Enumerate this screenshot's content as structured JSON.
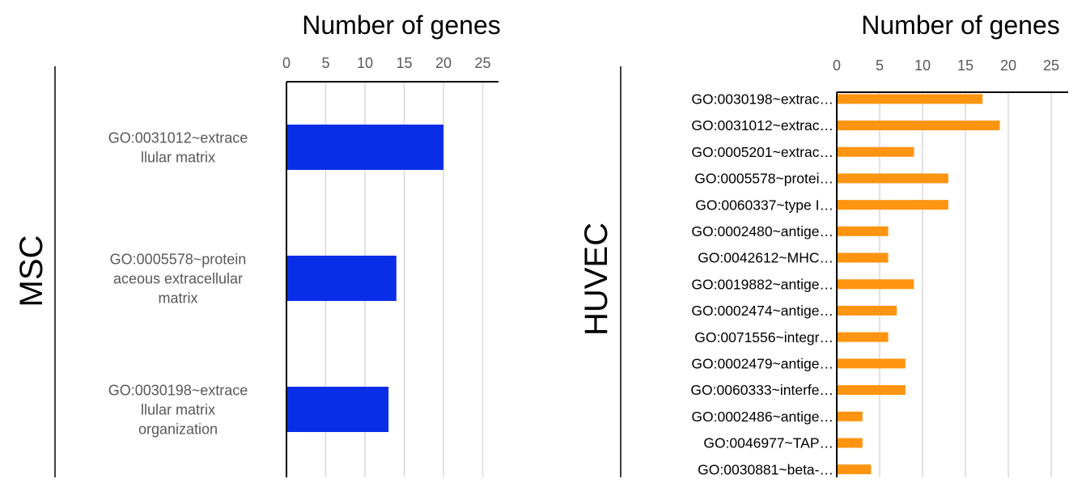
{
  "chart_data": [
    {
      "type": "bar",
      "orientation": "horizontal",
      "title": "Number of genes",
      "panel_label": "MSC",
      "xlim": [
        0,
        25
      ],
      "xticks": [
        0,
        5,
        10,
        15,
        20,
        25
      ],
      "grid": true,
      "bar_color": "#0A2EE8",
      "categories": [
        "GO:0031012~extracellular matrix",
        "GO:0005578~proteinaceous extracellular matrix",
        "GO:0030198~extracellular matrix organization"
      ],
      "category_lines": [
        [
          "GO:0031012~extrace",
          "llular matrix"
        ],
        [
          "GO:0005578~protein",
          "aceous extracellular",
          "matrix"
        ],
        [
          "GO:0030198~extrace",
          "llular matrix",
          "organization"
        ]
      ],
      "values": [
        20,
        14,
        13
      ]
    },
    {
      "type": "bar",
      "orientation": "horizontal",
      "title": "Number of genes",
      "panel_label": "HUVEC",
      "xlim": [
        0,
        25
      ],
      "xticks": [
        0,
        5,
        10,
        15,
        20,
        25
      ],
      "grid": true,
      "bar_color": "#FF9410",
      "categories": [
        "GO:0030198~extrac…",
        "GO:0031012~extrac…",
        "GO:0005201~extrac…",
        "GO:0005578~protei…",
        "GO:0060337~type I…",
        "GO:0002480~antige…",
        "GO:0042612~MHC…",
        "GO:0019882~antige…",
        "GO:0002474~antige…",
        "GO:0071556~integr…",
        "GO:0002479~antige…",
        "GO:0060333~interfe…",
        "GO:0002486~antige…",
        "GO:0046977~TAP…",
        "GO:0030881~beta-…"
      ],
      "values": [
        17,
        19,
        9,
        13,
        13,
        6,
        6,
        9,
        7,
        6,
        8,
        8,
        3,
        3,
        4
      ]
    }
  ]
}
